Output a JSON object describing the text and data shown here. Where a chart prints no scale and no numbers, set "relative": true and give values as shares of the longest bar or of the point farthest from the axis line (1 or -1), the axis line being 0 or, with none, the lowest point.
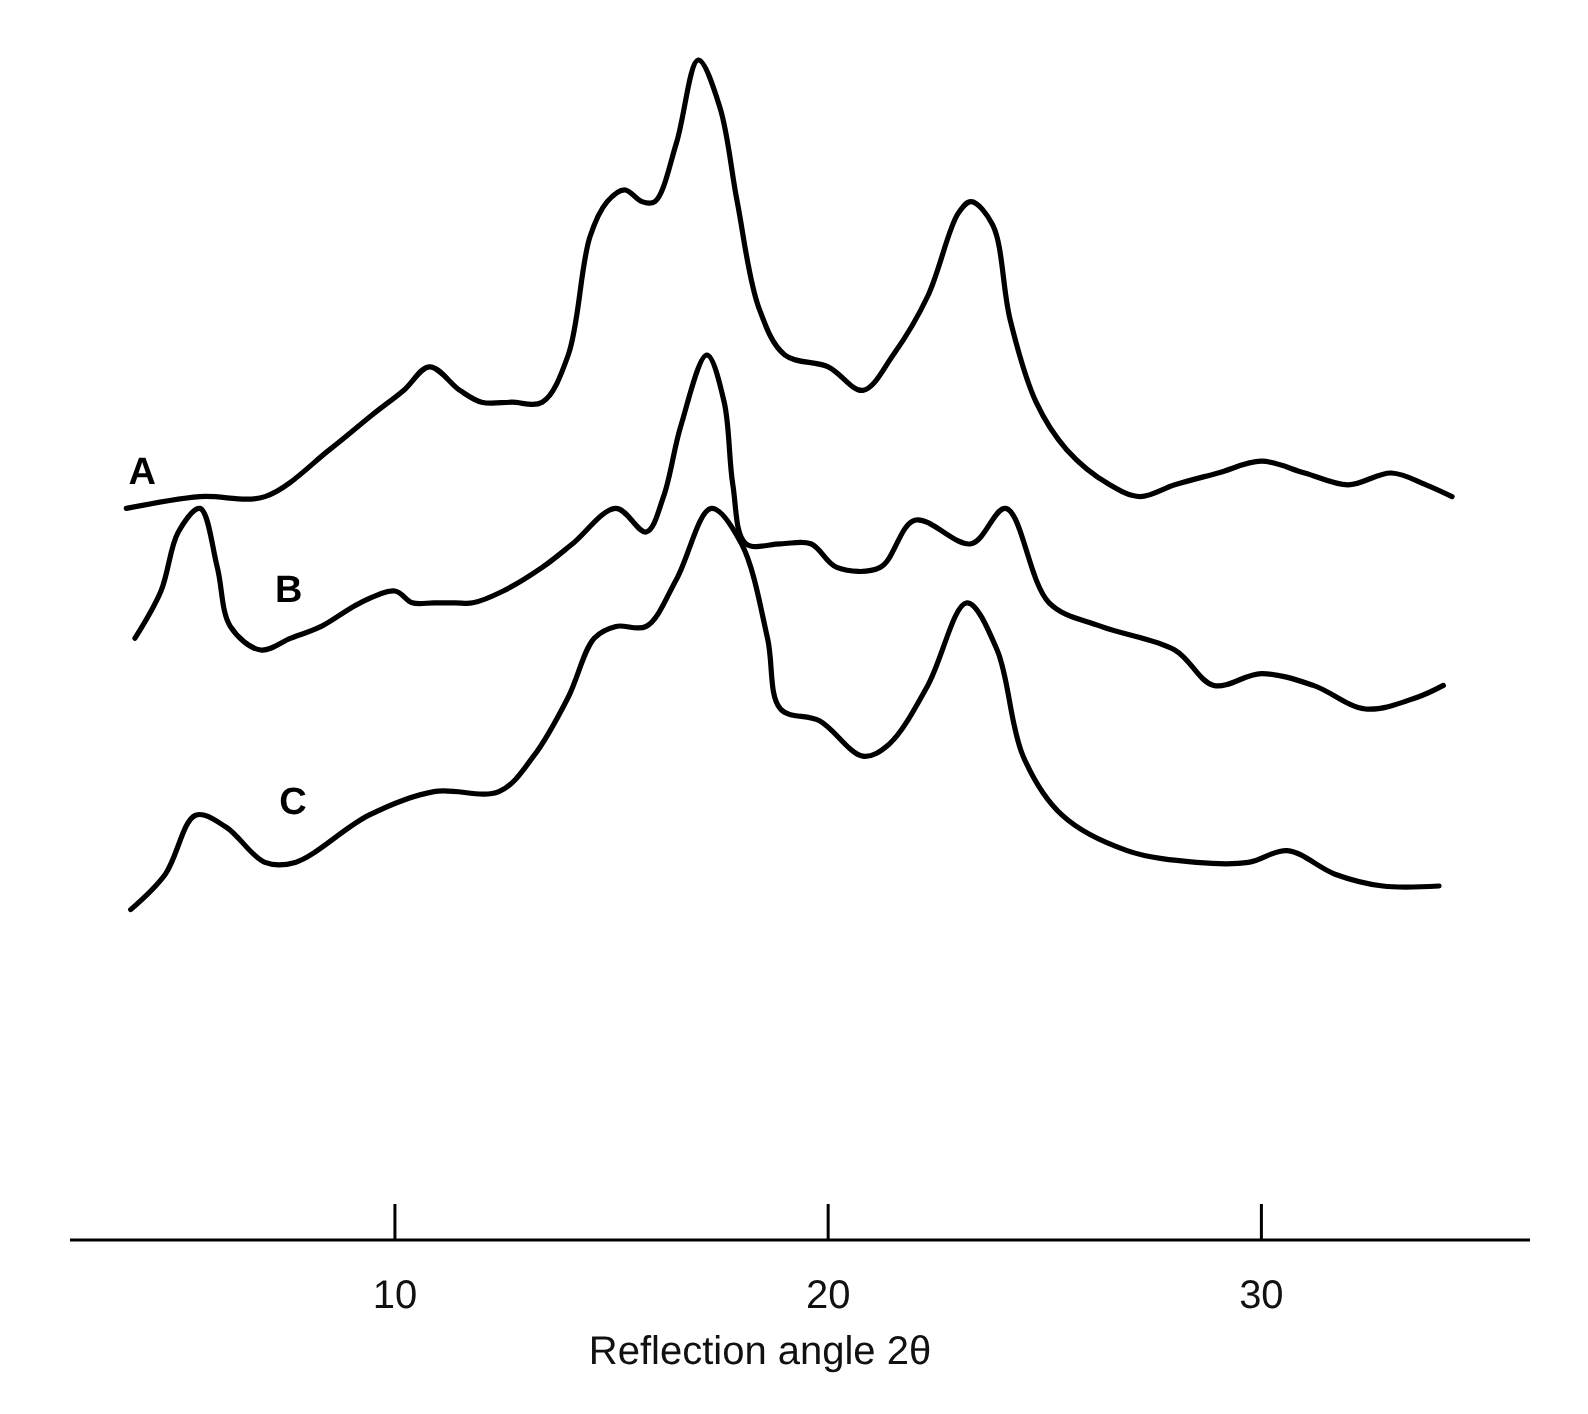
{
  "chart_data": {
    "type": "line",
    "xlabel": "Reflection angle 2θ",
    "relative": true,
    "xlim": [
      2.5,
      36.2
    ],
    "xticks": [
      10,
      20,
      30
    ],
    "grid": false,
    "legend": false,
    "marker": "none",
    "line_style": "solid",
    "series": [
      {
        "name": "A",
        "color": "#000000",
        "x": [
          3.8,
          5.5,
          7.0,
          8.5,
          9.5,
          10.2,
          10.8,
          11.5,
          12.0,
          12.7,
          13.4,
          14.0,
          14.5,
          14.9,
          15.3,
          15.7,
          16.0,
          16.5,
          17.0,
          17.5,
          17.9,
          18.4,
          19.0,
          20.0,
          20.8,
          21.5,
          22.3,
          23.0,
          23.3,
          23.8,
          24.2,
          24.8,
          25.5,
          26.5,
          27.2,
          28.0,
          29.0,
          30.0,
          31.0,
          32.0,
          33.0,
          33.8,
          34.4
        ],
        "values": [
          0.62,
          0.63,
          0.63,
          0.67,
          0.7,
          0.72,
          0.74,
          0.72,
          0.71,
          0.71,
          0.71,
          0.75,
          0.85,
          0.88,
          0.89,
          0.88,
          0.88,
          0.93,
          1.0,
          0.96,
          0.88,
          0.79,
          0.75,
          0.74,
          0.72,
          0.75,
          0.8,
          0.87,
          0.88,
          0.86,
          0.78,
          0.71,
          0.67,
          0.64,
          0.63,
          0.64,
          0.65,
          0.66,
          0.65,
          0.64,
          0.65,
          0.64,
          0.63
        ]
      },
      {
        "name": "B",
        "color": "#000000",
        "x": [
          4.0,
          4.6,
          5.0,
          5.5,
          5.9,
          6.2,
          6.9,
          7.6,
          8.3,
          9.2,
          10.0,
          10.4,
          10.9,
          11.4,
          11.8,
          12.5,
          13.4,
          14.1,
          15.1,
          15.8,
          16.2,
          16.6,
          17.2,
          17.6,
          17.8,
          18.1,
          18.9,
          19.6,
          20.2,
          21.2,
          22.0,
          23.3,
          24.1,
          25.1,
          26.3,
          28.0,
          28.9,
          30.0,
          31.2,
          32.4,
          33.6,
          34.2
        ],
        "values": [
          0.51,
          0.55,
          0.6,
          0.62,
          0.57,
          0.52,
          0.5,
          0.51,
          0.52,
          0.54,
          0.55,
          0.54,
          0.54,
          0.54,
          0.54,
          0.55,
          0.57,
          0.59,
          0.62,
          0.6,
          0.63,
          0.69,
          0.75,
          0.71,
          0.64,
          0.59,
          0.59,
          0.59,
          0.57,
          0.57,
          0.61,
          0.59,
          0.62,
          0.54,
          0.52,
          0.5,
          0.47,
          0.48,
          0.47,
          0.45,
          0.46,
          0.47
        ]
      },
      {
        "name": "C",
        "color": "#000000",
        "x": [
          3.9,
          4.7,
          5.4,
          6.1,
          7.0,
          7.7,
          9.4,
          10.9,
          12.4,
          13.2,
          14.0,
          14.6,
          15.1,
          15.8,
          16.5,
          17.3,
          18.0,
          18.6,
          18.9,
          19.8,
          20.8,
          21.4,
          22.3,
          23.2,
          23.9,
          24.5,
          25.4,
          26.9,
          28.5,
          29.7,
          30.6,
          31.7,
          32.8,
          34.1
        ],
        "values": [
          0.28,
          0.31,
          0.36,
          0.35,
          0.32,
          0.32,
          0.36,
          0.38,
          0.38,
          0.41,
          0.46,
          0.51,
          0.52,
          0.52,
          0.56,
          0.62,
          0.59,
          0.51,
          0.45,
          0.44,
          0.41,
          0.42,
          0.47,
          0.54,
          0.5,
          0.41,
          0.36,
          0.33,
          0.32,
          0.32,
          0.33,
          0.31,
          0.3,
          0.3
        ]
      }
    ]
  }
}
